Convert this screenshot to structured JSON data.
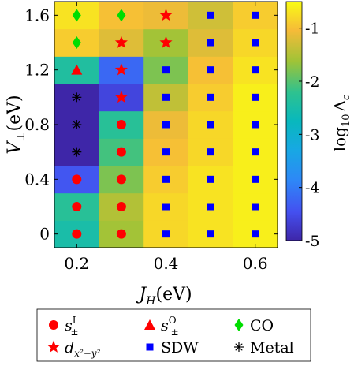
{
  "chart_data": {
    "type": "heatmap",
    "x": [
      0.2,
      0.3,
      0.4,
      0.5,
      0.6
    ],
    "y": [
      0,
      0.2,
      0.4,
      0.6,
      0.8,
      1.0,
      1.2,
      1.4,
      1.6
    ],
    "x_tick_labels": [
      "0.2",
      "0.4",
      "0.6"
    ],
    "x_ticks": [
      0.2,
      0.4,
      0.6
    ],
    "y_tick_labels": [
      "0",
      "0.4",
      "0.8",
      "1.2",
      "1.6"
    ],
    "y_ticks": [
      0,
      0.4,
      0.8,
      1.2,
      1.6
    ],
    "xlabel_main": "J",
    "xlabel_sub": "H",
    "xlabel_unit": "(eV)",
    "ylabel_main": "V",
    "ylabel_sub": "⊥",
    "ylabel_unit": "(eV)",
    "colorbar": {
      "label_prefix": "log",
      "label_sub": "10",
      "label_symbol": "Λ",
      "label_symbol_sub": "c",
      "ticks": [
        -1,
        -2,
        -3,
        -4,
        -5
      ],
      "tick_labels": [
        "-1",
        "-2",
        "-3",
        "-4",
        "-5"
      ],
      "range": [
        -5,
        -0.5
      ]
    },
    "values": [
      [
        -2.5,
        -1.6,
        -0.8,
        -0.7,
        -0.6
      ],
      [
        -2.3,
        -1.5,
        -0.8,
        -0.7,
        -0.6
      ],
      [
        -4.4,
        -1.8,
        -0.9,
        -0.7,
        -0.6
      ],
      [
        -5.0,
        -2.1,
        -1.0,
        -0.8,
        -0.6
      ],
      [
        -5.0,
        -2.3,
        -1.1,
        -0.8,
        -0.6
      ],
      [
        -5.0,
        -4.6,
        -1.4,
        -0.9,
        -0.6
      ],
      [
        -2.4,
        -4.2,
        -1.8,
        -1.0,
        -0.7
      ],
      [
        -0.9,
        -1.2,
        -1.6,
        -1.2,
        -0.8
      ],
      [
        -0.7,
        -1.0,
        -1.1,
        -1.3,
        -0.9
      ]
    ],
    "phases": [
      [
        "s_pm_I",
        "s_pm_I",
        "SDW",
        "SDW",
        "SDW"
      ],
      [
        "s_pm_I",
        "s_pm_I",
        "SDW",
        "SDW",
        "SDW"
      ],
      [
        "s_pm_I",
        "s_pm_I",
        "SDW",
        "SDW",
        "SDW"
      ],
      [
        "Metal",
        "s_pm_I",
        "SDW",
        "SDW",
        "SDW"
      ],
      [
        "Metal",
        "s_pm_I",
        "SDW",
        "SDW",
        "SDW"
      ],
      [
        "Metal",
        "d_x2y2",
        "SDW",
        "SDW",
        "SDW"
      ],
      [
        "s_pm_O",
        "d_x2y2",
        "SDW",
        "SDW",
        "SDW"
      ],
      [
        "CO",
        "d_x2y2",
        "d_x2y2",
        "SDW",
        "SDW"
      ],
      [
        "CO",
        "CO",
        "d_x2y2",
        "SDW",
        "SDW"
      ]
    ],
    "legend": {
      "placement": "bottom",
      "entries": [
        {
          "key": "s_pm_I",
          "marker": "circle",
          "label_main": "s",
          "label_sub": "±",
          "label_sup": "I"
        },
        {
          "key": "s_pm_O",
          "marker": "triangle",
          "label_main": "s",
          "label_sub": "±",
          "label_sup": "O"
        },
        {
          "key": "CO",
          "marker": "diamond",
          "label_main": "CO"
        },
        {
          "key": "d_x2y2",
          "marker": "star",
          "label_main": "d",
          "label_sub": "x²−y²"
        },
        {
          "key": "SDW",
          "marker": "square",
          "label_main": "SDW"
        },
        {
          "key": "Metal",
          "marker": "asterisk",
          "label_main": "Metal"
        }
      ]
    },
    "marker_colors": {
      "s_pm_I": "#ff0000",
      "s_pm_O": "#ff0000",
      "d_x2y2": "#ff0000",
      "CO": "#00dd00",
      "SDW": "#0000ff",
      "Metal": "#000000"
    },
    "colormap": "parula"
  }
}
